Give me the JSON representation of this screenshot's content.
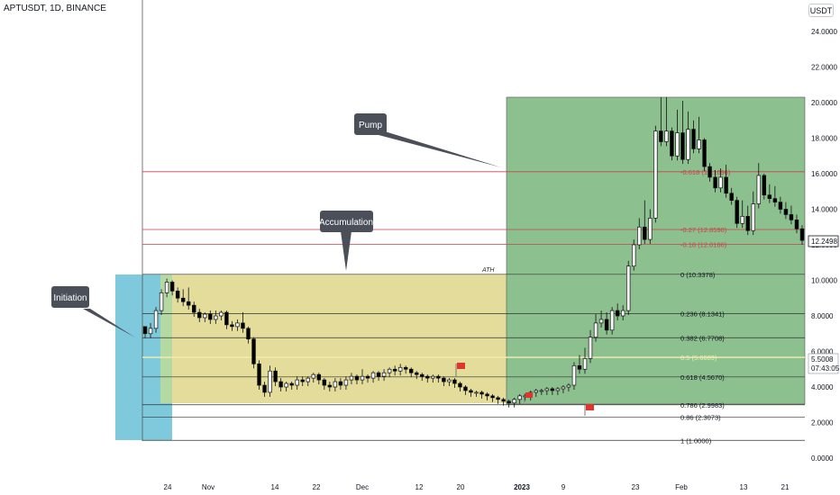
{
  "header": {
    "symbol": "APTUSDT, 1D, BINANCE"
  },
  "currency_button": {
    "label": "USDT"
  },
  "colors": {
    "green_zone": "#8cc08e",
    "yellow_zone": "#e3dc9a",
    "cyan_zone": "#7ec9dc",
    "fib_line": "#333333",
    "red_line": "#c9434a",
    "candle_up": "#ffffff",
    "candle_down": "#000000"
  },
  "chart_data": {
    "type": "candlestick",
    "title": "APTUSDT, 1D, BINANCE",
    "y_axis": {
      "ticks": [
        "24.0000",
        "22.0000",
        "20.0000",
        "18.0000",
        "16.0000",
        "14.0000",
        "12.0000",
        "10.0000",
        "8.0000",
        "6.0000",
        "4.0000",
        "2.0000",
        "0.0000"
      ],
      "range": [
        0,
        25
      ]
    },
    "x_axis": {
      "ticks": [
        "24",
        "Nov",
        "14",
        "22",
        "Dec",
        "12",
        "20",
        "2023",
        "9",
        "23",
        "Feb",
        "13",
        "21"
      ]
    },
    "current_price_label": "12.2498",
    "secondary_label": {
      "price": "5.5008",
      "countdown": "07:43:05"
    },
    "zones": [
      {
        "name": "Initiation",
        "color": "cyan",
        "label": "Initiation"
      },
      {
        "name": "Accumulation",
        "color": "yellow",
        "label": "Accumulation"
      },
      {
        "name": "Pump",
        "color": "green",
        "label": "Pump"
      }
    ],
    "annotations": {
      "ath": "ATH"
    },
    "fib_levels": [
      {
        "label": "0 (10.3378)",
        "value": 10.3378,
        "color": "dark"
      },
      {
        "label": "0.236 (8.1341)",
        "value": 8.1341,
        "color": "dark"
      },
      {
        "label": "0.382 (6.7708)",
        "value": 6.7708,
        "color": "dark"
      },
      {
        "label": "0.5 (5.6689)",
        "value": 5.6689,
        "color": "light"
      },
      {
        "label": "0.618 (4.5670)",
        "value": 4.567,
        "color": "dark"
      },
      {
        "label": "0.786 (2.9983)",
        "value": 2.9983,
        "color": "dark"
      },
      {
        "label": "0.86 (2.3073)",
        "value": 2.3073,
        "color": "dark"
      },
      {
        "label": "1 (1.0000)",
        "value": 1.0,
        "color": "dark"
      }
    ],
    "red_levels": [
      {
        "label": "-0.618 (16.1096)",
        "value": 16.1096
      },
      {
        "label": "-0.27 (12.8590)",
        "value": 12.859
      },
      {
        "label": "-0.18 (12.0186)",
        "value": 12.0186
      }
    ],
    "candles": [
      [
        7.4,
        7.0,
        7.3
      ],
      [
        7.0,
        7.3,
        7.6
      ],
      [
        7.3,
        8.3,
        8.5
      ],
      [
        8.3,
        9.3,
        9.5
      ],
      [
        9.3,
        9.9,
        10.1
      ],
      [
        9.9,
        9.4,
        10.0
      ],
      [
        9.4,
        9.0,
        9.6
      ],
      [
        9.0,
        8.8,
        9.5
      ],
      [
        8.8,
        8.6,
        9.6
      ],
      [
        8.6,
        8.2,
        8.8
      ],
      [
        8.2,
        7.9,
        8.4
      ],
      [
        7.9,
        8.1,
        8.2
      ],
      [
        8.1,
        7.8,
        8.3
      ],
      [
        7.8,
        8.0,
        8.3
      ],
      [
        8.0,
        8.2,
        8.3
      ],
      [
        8.2,
        7.5,
        8.3
      ],
      [
        7.5,
        7.4,
        7.7
      ],
      [
        7.4,
        7.6,
        7.8
      ],
      [
        7.6,
        7.3,
        8.2
      ],
      [
        7.3,
        6.7,
        7.4
      ],
      [
        6.7,
        5.3,
        6.8
      ],
      [
        5.3,
        4.1,
        5.5
      ],
      [
        4.1,
        3.7,
        4.3
      ],
      [
        3.7,
        4.9,
        5.2
      ],
      [
        4.9,
        4.3,
        5.1
      ],
      [
        4.3,
        4.0,
        4.5
      ],
      [
        4.0,
        4.2,
        4.3
      ],
      [
        4.2,
        4.1,
        4.3
      ],
      [
        4.1,
        4.4,
        4.6
      ],
      [
        4.4,
        4.3,
        4.6
      ],
      [
        4.3,
        4.5,
        4.6
      ],
      [
        4.5,
        4.7,
        4.8
      ],
      [
        4.7,
        4.4,
        4.8
      ],
      [
        4.4,
        4.1,
        4.5
      ],
      [
        4.1,
        4.0,
        4.3
      ],
      [
        4.0,
        4.3,
        4.5
      ],
      [
        4.3,
        4.1,
        4.5
      ],
      [
        4.1,
        4.4,
        4.6
      ],
      [
        4.4,
        4.6,
        4.8
      ],
      [
        4.6,
        4.4,
        4.7
      ],
      [
        4.4,
        4.6,
        5.0
      ],
      [
        4.6,
        4.5,
        4.7
      ],
      [
        4.5,
        4.8,
        4.9
      ],
      [
        4.8,
        4.6,
        4.9
      ],
      [
        4.6,
        4.8,
        5.0
      ],
      [
        4.8,
        5.0,
        5.1
      ],
      [
        5.0,
        4.9,
        5.2
      ],
      [
        4.9,
        5.1,
        5.3
      ],
      [
        5.1,
        5.0,
        5.2
      ],
      [
        5.0,
        4.8,
        5.1
      ],
      [
        4.8,
        4.7,
        4.9
      ],
      [
        4.7,
        4.6,
        4.8
      ],
      [
        4.6,
        4.5,
        4.7
      ],
      [
        4.5,
        4.6,
        4.7
      ],
      [
        4.6,
        4.5,
        4.7
      ],
      [
        4.5,
        4.3,
        4.6
      ],
      [
        4.3,
        4.4,
        4.5
      ],
      [
        4.4,
        4.2,
        4.5
      ],
      [
        4.2,
        4.0,
        4.3
      ],
      [
        4.0,
        3.8,
        4.1
      ],
      [
        3.8,
        3.7,
        3.9
      ],
      [
        3.7,
        3.7,
        3.8
      ],
      [
        3.7,
        3.6,
        3.8
      ],
      [
        3.6,
        3.5,
        3.7
      ],
      [
        3.5,
        3.4,
        3.6
      ],
      [
        3.4,
        3.3,
        3.5
      ],
      [
        3.3,
        3.2,
        3.4
      ],
      [
        3.2,
        3.1,
        3.3
      ],
      [
        3.1,
        3.3,
        3.4
      ],
      [
        3.3,
        3.5,
        3.6
      ],
      [
        3.5,
        3.5,
        3.6
      ],
      [
        3.5,
        3.7,
        3.8
      ],
      [
        3.7,
        3.8,
        3.9
      ],
      [
        3.8,
        3.8,
        3.9
      ],
      [
        3.8,
        3.9,
        4.0
      ],
      [
        3.9,
        3.8,
        4.0
      ],
      [
        3.8,
        3.9,
        4.0
      ],
      [
        3.9,
        4.0,
        4.1
      ],
      [
        4.0,
        4.1,
        4.2
      ],
      [
        4.1,
        5.2,
        5.4
      ],
      [
        5.2,
        5.0,
        5.8
      ],
      [
        5.0,
        5.6,
        6.2
      ],
      [
        5.6,
        6.8,
        7.2
      ],
      [
        6.8,
        7.6,
        8.1
      ],
      [
        7.6,
        7.8,
        8.3
      ],
      [
        7.8,
        7.2,
        8.2
      ],
      [
        7.2,
        8.3,
        8.5
      ],
      [
        8.3,
        8.0,
        8.7
      ],
      [
        8.0,
        8.3,
        8.6
      ],
      [
        8.3,
        10.8,
        11.1
      ],
      [
        10.8,
        12.0,
        12.3
      ],
      [
        12.0,
        13.0,
        13.5
      ],
      [
        13.0,
        12.3,
        14.5
      ],
      [
        12.3,
        13.5,
        14.0
      ],
      [
        13.5,
        18.4,
        18.7
      ],
      [
        18.4,
        17.8,
        20.3
      ],
      [
        17.8,
        18.4,
        20.3
      ],
      [
        18.4,
        17.0,
        18.6
      ],
      [
        17.0,
        18.3,
        19.6
      ],
      [
        18.3,
        16.8,
        20.1
      ],
      [
        16.8,
        18.5,
        19.5
      ],
      [
        18.5,
        17.4,
        19.0
      ],
      [
        17.4,
        17.9,
        19.2
      ],
      [
        17.9,
        16.4,
        18.0
      ],
      [
        16.4,
        15.8,
        16.6
      ],
      [
        15.8,
        15.2,
        16.2
      ],
      [
        15.2,
        15.8,
        16.3
      ],
      [
        15.8,
        14.9,
        16.5
      ],
      [
        14.9,
        14.5,
        15.2
      ],
      [
        14.5,
        13.2,
        14.7
      ],
      [
        13.2,
        13.6,
        14.5
      ],
      [
        13.6,
        12.8,
        14.2
      ],
      [
        12.8,
        14.3,
        15.0
      ],
      [
        14.3,
        15.9,
        16.6
      ],
      [
        15.9,
        14.8,
        16.0
      ],
      [
        14.8,
        14.6,
        15.4
      ],
      [
        14.6,
        14.4,
        15.3
      ],
      [
        14.4,
        14.0,
        14.7
      ],
      [
        14.0,
        13.7,
        14.4
      ],
      [
        13.7,
        13.4,
        14.2
      ],
      [
        13.4,
        12.9,
        13.7
      ],
      [
        12.9,
        12.25,
        13.1
      ]
    ]
  }
}
